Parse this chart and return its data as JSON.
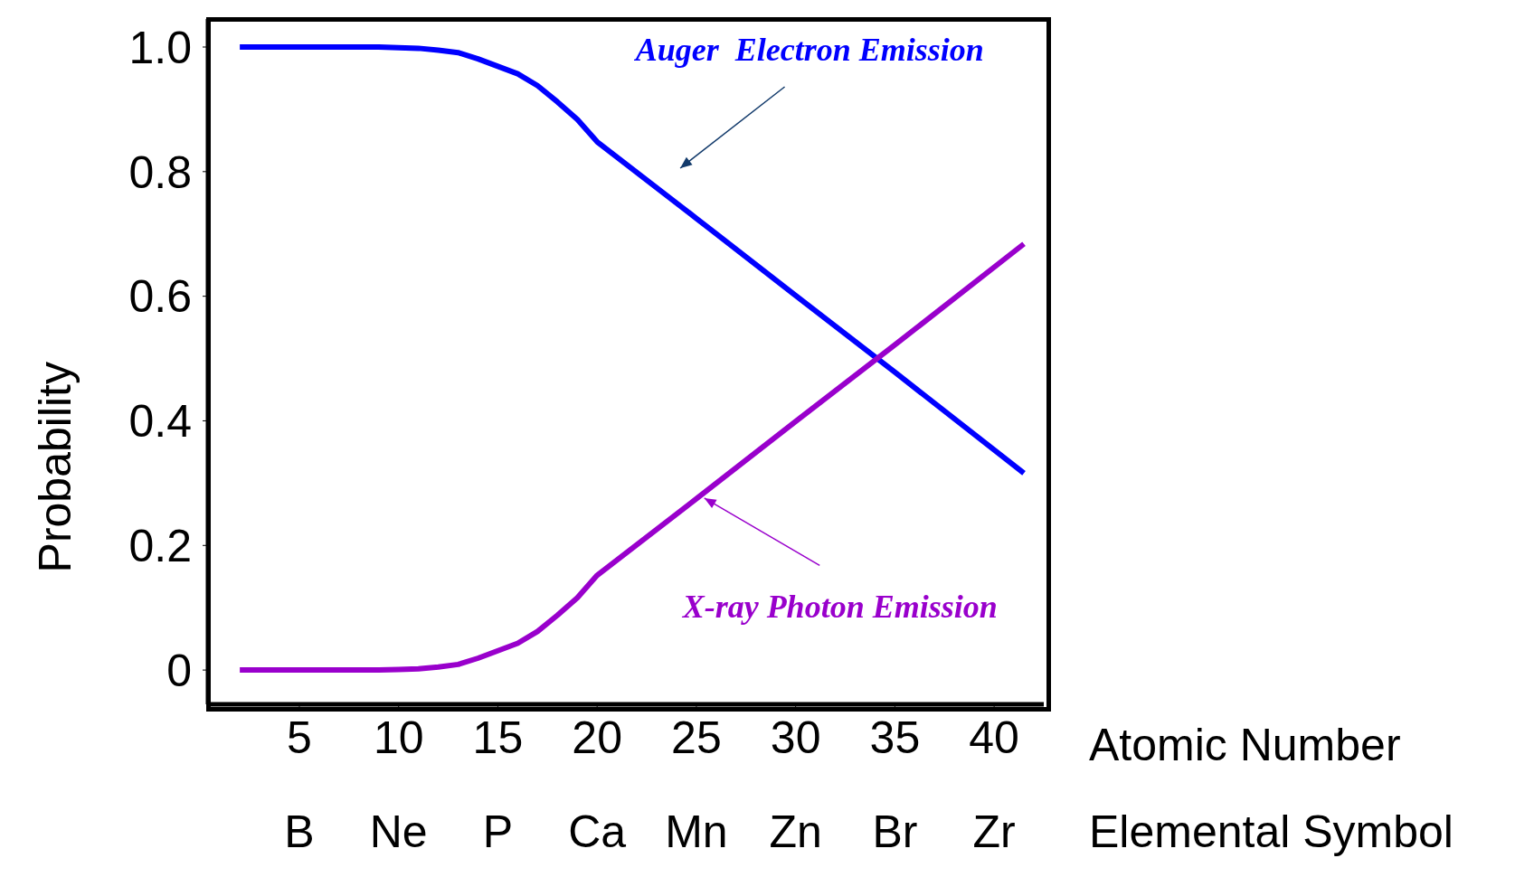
{
  "chart_data": {
    "type": "line",
    "ylabel": "Probability",
    "xlabel": "Atomic Number",
    "x2label": "Elemental Symbol",
    "x": [
      2,
      9,
      10,
      11,
      12,
      13,
      14,
      15,
      16,
      17,
      18,
      19,
      20,
      25,
      30,
      35,
      41.5
    ],
    "series": [
      {
        "color": "#0000ff",
        "values": [
          1,
          1,
          0.999,
          0.998,
          0.995,
          0.991,
          0.981,
          0.969,
          0.957,
          0.938,
          0.912,
          0.884,
          0.848,
          0.725,
          0.601,
          0.478,
          0.316
        ]
      },
      {
        "color": "#9900cc",
        "values": [
          0,
          0,
          0.001,
          0.002,
          0.005,
          0.009,
          0.019,
          0.031,
          0.043,
          0.062,
          0.088,
          0.116,
          0.152,
          0.275,
          0.399,
          0.522,
          0.684
        ]
      }
    ],
    "xlim": [
      0.4,
      42.5
    ],
    "xticks": [
      5,
      10,
      15,
      20,
      25,
      30,
      35,
      40
    ],
    "ylim": [
      -0.055,
      1.045
    ],
    "yticks": [
      0,
      0.2,
      0.4,
      0.6,
      0.8,
      {
        "value": 1,
        "label": "1.0"
      }
    ],
    "marker": "none",
    "line_style": "solid",
    "annotations": [
      "Auger  Electron Emission",
      {
        "text": "X-ray Photon Emission",
        "x": 25.4,
        "y": 0.276
      },
      "B",
      "Ne",
      "P",
      "Ca",
      "Mn",
      "Zn",
      "Br",
      "Zr"
    ]
  }
}
